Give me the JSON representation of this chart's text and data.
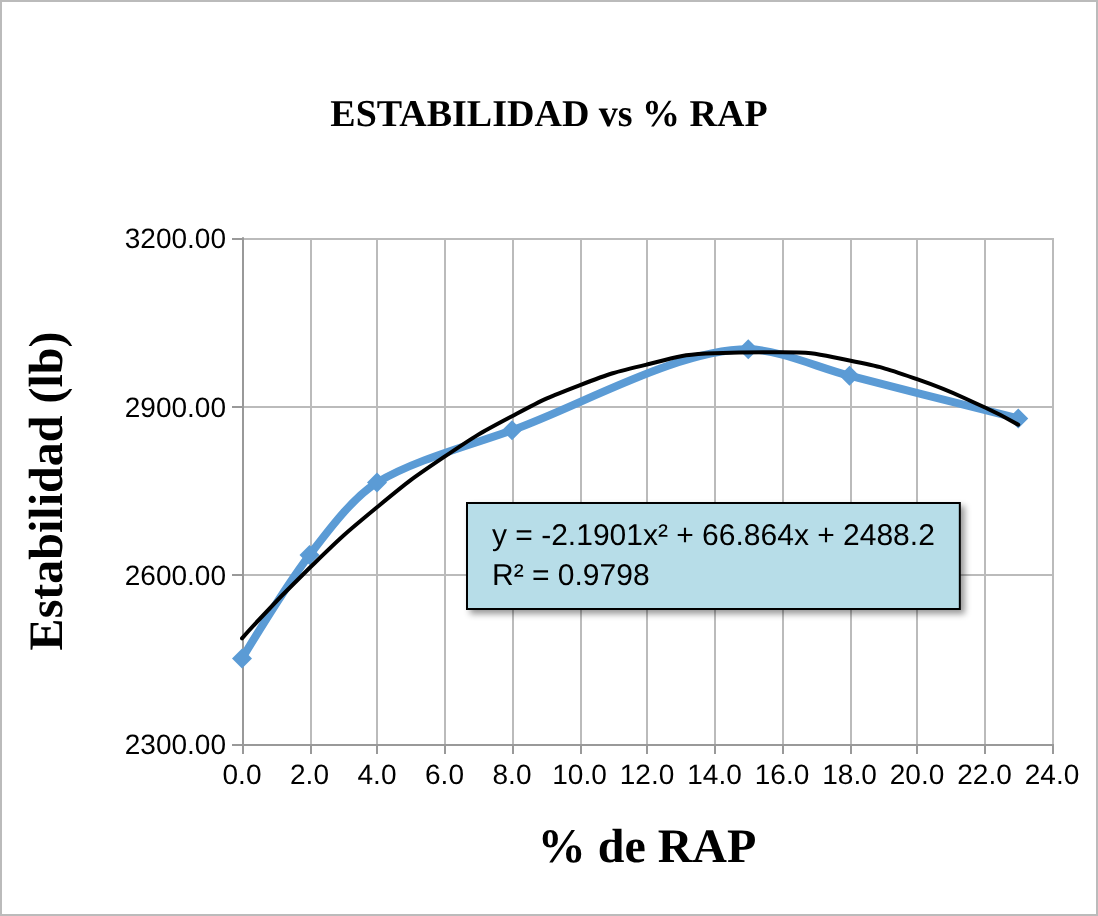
{
  "chart_data": {
    "type": "line",
    "title": "ESTABILIDAD vs % RAP",
    "xlabel": "% de RAP",
    "ylabel": "Estabilidad (lb)",
    "x": [
      0,
      2,
      4,
      8,
      15,
      18,
      23
    ],
    "series": [
      {
        "color": "#5b9bd5",
        "marker": "diamond",
        "values": [
          2452,
          2636,
          2765,
          2858,
          3002,
          2955,
          2879
        ]
      },
      {
        "color": "#000000",
        "marker": "none",
        "x": [
          0,
          2,
          4,
          6,
          8,
          10,
          12,
          14,
          16,
          18,
          20,
          22,
          23
        ],
        "values": [
          2488,
          2613,
          2721,
          2811,
          2883,
          2938,
          2975,
          2995,
          2997,
          2982,
          2949,
          2899,
          2868
        ]
      }
    ],
    "xlim": [
      0,
      24
    ],
    "xticks": [
      {
        "value": 0,
        "label": "0.0"
      },
      {
        "value": 2,
        "label": "2.0"
      },
      {
        "value": 4,
        "label": "4.0"
      },
      {
        "value": 6,
        "label": "6.0"
      },
      {
        "value": 8,
        "label": "8.0"
      },
      {
        "value": 10,
        "label": "10.0"
      },
      {
        "value": 12,
        "label": "12.0"
      },
      {
        "value": 14,
        "label": "14.0"
      },
      {
        "value": 16,
        "label": "16.0"
      },
      {
        "value": 18,
        "label": "18.0"
      },
      {
        "value": 20,
        "label": "20.0"
      },
      {
        "value": 22,
        "label": "22.0"
      },
      {
        "value": 24,
        "label": "24.0"
      }
    ],
    "ylim": [
      2300,
      3200
    ],
    "yticks": [
      {
        "value": 2300,
        "label": "2300.00"
      },
      {
        "value": 2600,
        "label": "2600.00"
      },
      {
        "value": 2900,
        "label": "2900.00"
      },
      {
        "value": 3200,
        "label": "3200.00"
      }
    ],
    "grid": true,
    "annotations": [
      "y = -2.1901x² + 66.864x + 2488.2",
      "R² = 0.9798"
    ]
  }
}
